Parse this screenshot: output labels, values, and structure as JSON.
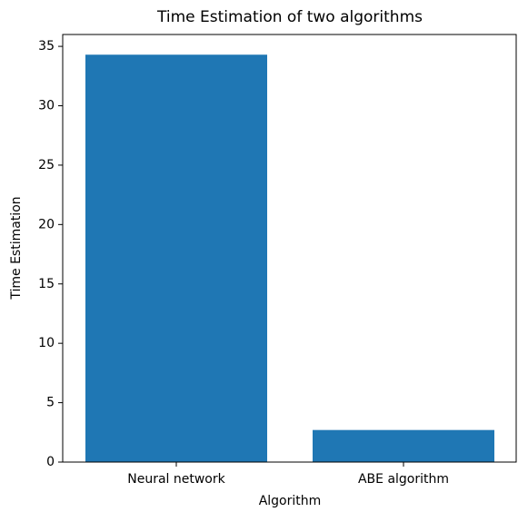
{
  "chart_data": {
    "type": "bar",
    "title": "Time Estimation of two algorithms",
    "x_label": "Algorithm",
    "y_label": "Time Estimation",
    "categories": [
      "Neural network",
      "ABE algorithm"
    ],
    "values": [
      34.3,
      2.7
    ],
    "color": "#1f77b4",
    "ylim": [
      0,
      36.0
    ],
    "yticks": [
      0,
      5,
      10,
      15,
      20,
      25,
      30,
      35
    ],
    "grid": false
  }
}
